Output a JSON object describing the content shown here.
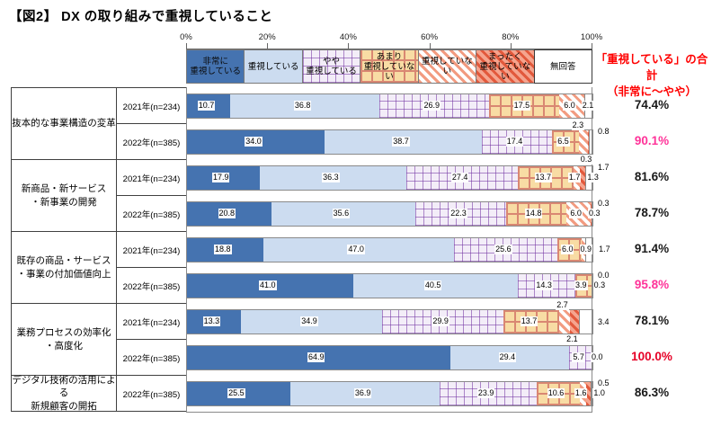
{
  "title": "【図2】 DX の取り組みで重視していること",
  "axis": {
    "ticks": [
      "0%",
      "20%",
      "40%",
      "60%",
      "80%",
      "100%"
    ]
  },
  "legend": [
    {
      "key": "very",
      "lines": [
        "非常に",
        "重視している"
      ]
    },
    {
      "key": "high",
      "lines": [
        "重視している"
      ]
    },
    {
      "key": "some",
      "lines": [
        "やや",
        "重視している"
      ]
    },
    {
      "key": "notmuch",
      "lines": [
        "あまり",
        "重視していない"
      ]
    },
    {
      "key": "not",
      "lines": [
        "重視していない"
      ]
    },
    {
      "key": "notall",
      "lines": [
        "まったく",
        "重視していない"
      ]
    },
    {
      "key": "na",
      "lines": [
        "無回答"
      ]
    }
  ],
  "totals_header": {
    "line1": "「重視している」の合計",
    "line2": "（非常に～やや）"
  },
  "colors": {
    "very": "#4573B0",
    "high": "#CCDCF0",
    "some_bg": "#F3EDF8",
    "some_dot": "#7030A0",
    "notmuch_bg": "#F8DCA4",
    "notmuch_line": "#D98772",
    "not_stripe": "#F29B80",
    "notall_bg": "#F5A48E",
    "notall_stripe": "#E2593C",
    "na": "#FFFFFF",
    "header_red": "#FF0000",
    "total_pink": "#FF3399",
    "total_red": "#E60026",
    "total_black": "#1A1A1A"
  },
  "chart_data": {
    "type": "bar",
    "stacked": true,
    "orientation": "horizontal",
    "unit": "%",
    "xlim": [
      0,
      100
    ],
    "title": "【図2】 DX の取り組みで重視していること",
    "series_keys": [
      "very",
      "high",
      "some",
      "notmuch",
      "not",
      "notall",
      "na"
    ],
    "series_names": [
      "非常に重視している",
      "重視している",
      "やや重視している",
      "あまり重視していない",
      "重視していない",
      "まったく重視していない",
      "無回答"
    ],
    "totals_note": "「重視している」の合計（非常に～やや）",
    "groups": [
      {
        "label_lines": [
          "抜本的な事業構造の変革"
        ],
        "rows": [
          {
            "year": "2021年(n=234)",
            "values": [
              10.7,
              36.8,
              26.9,
              17.5,
              6.0,
              0.0,
              2.1
            ],
            "placements": [
              "chip",
              "chip",
              "chip",
              "chip",
              "chip",
              "none",
              "in"
            ],
            "total": "74.4%",
            "total_style": "black"
          },
          {
            "year": "2022年(n=385)",
            "values": [
              34.0,
              38.7,
              17.4,
              6.5,
              2.3,
              0.3,
              0.8
            ],
            "placements": [
              "chip",
              "chip",
              "chip",
              "chip",
              "above",
              "below",
              "outa"
            ],
            "total": "90.1%",
            "total_style": "pink"
          }
        ]
      },
      {
        "label_lines": [
          "新商品・新サービス",
          "・新事業の開発"
        ],
        "rows": [
          {
            "year": "2021年(n=234)",
            "values": [
              17.9,
              36.3,
              27.4,
              13.7,
              1.7,
              1.3,
              1.7
            ],
            "placements": [
              "chip",
              "chip",
              "chip",
              "chip",
              "in",
              "in",
              "outa"
            ],
            "total": "81.6%",
            "total_style": "black"
          },
          {
            "year": "2022年(n=385)",
            "values": [
              20.8,
              35.6,
              22.3,
              14.8,
              6.0,
              0.3,
              0.3
            ],
            "placements": [
              "chip",
              "chip",
              "chip",
              "chip",
              "chip",
              "in",
              "outa"
            ],
            "total": "78.7%",
            "total_style": "black"
          }
        ]
      },
      {
        "label_lines": [
          "既存の商品・サービス",
          "・事業の付加価値向上"
        ],
        "rows": [
          {
            "year": "2021年(n=234)",
            "values": [
              18.8,
              47.0,
              25.6,
              6.0,
              0.9,
              0.0,
              1.7
            ],
            "placements": [
              "chip",
              "chip",
              "chip",
              "chip",
              "in",
              "none",
              "in"
            ],
            "total": "91.4%",
            "total_style": "black"
          },
          {
            "year": "2022年(n=385)",
            "values": [
              41.0,
              40.5,
              14.3,
              3.9,
              0.3,
              0.0,
              0.0
            ],
            "placements": [
              "chip",
              "chip",
              "chip",
              "chip",
              "in",
              "none",
              "outa"
            ],
            "total": "95.8%",
            "total_style": "pink"
          }
        ]
      },
      {
        "label_lines": [
          "業務プロセスの効率化",
          "・高度化"
        ],
        "rows": [
          {
            "year": "2021年(n=234)",
            "values": [
              13.3,
              34.9,
              29.9,
              13.7,
              2.7,
              2.1,
              3.4
            ],
            "placements": [
              "chip",
              "chip",
              "chip",
              "chip",
              "above",
              "below",
              "out"
            ],
            "total": "78.1%",
            "total_style": "black"
          },
          {
            "year": "2022年(n=385)",
            "values": [
              64.9,
              29.4,
              5.7,
              0.0,
              0.0,
              0.0,
              0.0
            ],
            "placements": [
              "chip",
              "chip",
              "chip",
              "none",
              "none",
              "none",
              "in"
            ],
            "total": "100.0%",
            "total_style": "red"
          }
        ]
      },
      {
        "label_lines": [
          "デジタル技術の活用による",
          "新規顧客の開拓"
        ],
        "rows": [
          {
            "year": "2022年(n=385)",
            "values": [
              25.5,
              36.9,
              23.9,
              10.6,
              1.6,
              1.0,
              0.5
            ],
            "placements": [
              "chip",
              "chip",
              "chip",
              "chip",
              "in",
              "in",
              "outa"
            ],
            "total": "86.3%",
            "total_style": "black"
          }
        ]
      }
    ]
  }
}
